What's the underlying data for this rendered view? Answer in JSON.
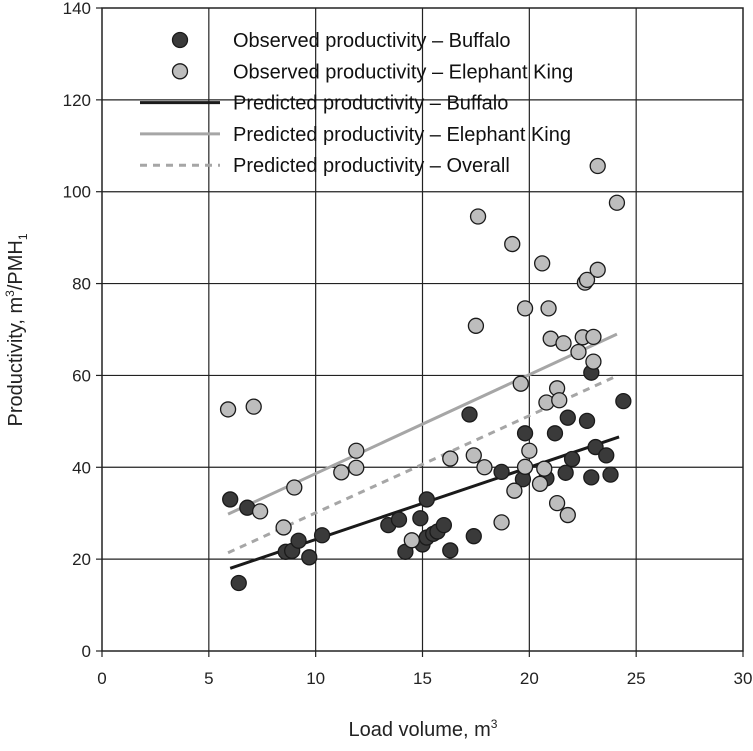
{
  "chart_data": {
    "type": "scatter",
    "title": "",
    "xlabel": "Load volume, m",
    "xlabel_sup": "3",
    "ylabel": "Productivity, m",
    "ylabel_sup": "3",
    "ylabel_tail": "/PMH",
    "ylabel_sub": "1",
    "xlim": [
      0,
      30
    ],
    "ylim": [
      0,
      140
    ],
    "x_ticks": [
      0,
      5,
      10,
      15,
      20,
      25,
      30
    ],
    "y_ticks": [
      0,
      20,
      40,
      60,
      80,
      100,
      120,
      140
    ],
    "x_tick_labels": [
      "0",
      "5",
      "10",
      "15",
      "20",
      "25",
      "30"
    ],
    "y_tick_labels": [
      "0",
      "20",
      "40",
      "60",
      "80",
      "100",
      "120",
      "140"
    ],
    "grid": true,
    "legend_position": "top-left",
    "legend": [
      "Observed productivity – Buffalo",
      "Observed productivity – Elephant King",
      "Predicted productivity – Buffalo",
      "Predicted productivity – Elephant King",
      "Predicted productivity – Overall"
    ],
    "colors": {
      "buffalo_fill": "#3a3a3a",
      "elephant_fill": "#bdbdbd",
      "buffalo_line": "#1a1a1a",
      "elephant_line": "#a6a6a6",
      "overall_line": "#a6a6a6",
      "grid": "#222222"
    },
    "series": [
      {
        "name": "Observed productivity – Buffalo",
        "kind": "scatter",
        "points": [
          [
            6.0,
            33.0
          ],
          [
            6.4,
            14.8
          ],
          [
            6.8,
            31.2
          ],
          [
            8.6,
            21.6
          ],
          [
            8.9,
            21.8
          ],
          [
            9.2,
            24.0
          ],
          [
            9.7,
            20.4
          ],
          [
            10.3,
            25.2
          ],
          [
            13.4,
            27.4
          ],
          [
            13.9,
            28.6
          ],
          [
            14.2,
            21.6
          ],
          [
            14.9,
            28.9
          ],
          [
            15.0,
            23.2
          ],
          [
            15.2,
            24.7
          ],
          [
            15.2,
            33.0
          ],
          [
            15.5,
            25.5
          ],
          [
            15.7,
            26.0
          ],
          [
            16.0,
            27.4
          ],
          [
            16.3,
            21.9
          ],
          [
            17.2,
            51.5
          ],
          [
            17.4,
            25.0
          ],
          [
            18.7,
            39.0
          ],
          [
            19.7,
            37.4
          ],
          [
            19.8,
            47.4
          ],
          [
            20.8,
            37.6
          ],
          [
            21.2,
            47.4
          ],
          [
            21.7,
            38.8
          ],
          [
            21.8,
            50.8
          ],
          [
            22.0,
            41.8
          ],
          [
            22.7,
            50.1
          ],
          [
            22.9,
            37.8
          ],
          [
            22.9,
            60.6
          ],
          [
            23.1,
            44.4
          ],
          [
            23.6,
            42.6
          ],
          [
            23.8,
            38.4
          ],
          [
            24.4,
            54.4
          ]
        ]
      },
      {
        "name": "Observed productivity – Elephant King",
        "kind": "scatter",
        "points": [
          [
            5.9,
            52.6
          ],
          [
            7.1,
            53.2
          ],
          [
            7.4,
            30.4
          ],
          [
            8.5,
            26.9
          ],
          [
            9.0,
            35.6
          ],
          [
            11.2,
            38.9
          ],
          [
            11.9,
            39.9
          ],
          [
            11.9,
            43.6
          ],
          [
            14.5,
            24.1
          ],
          [
            16.3,
            41.9
          ],
          [
            17.4,
            42.6
          ],
          [
            17.5,
            70.8
          ],
          [
            17.6,
            94.6
          ],
          [
            17.9,
            40.0
          ],
          [
            18.7,
            28.0
          ],
          [
            19.2,
            88.6
          ],
          [
            19.3,
            34.9
          ],
          [
            19.6,
            58.2
          ],
          [
            19.8,
            40.1
          ],
          [
            19.8,
            74.6
          ],
          [
            20.0,
            43.6
          ],
          [
            20.5,
            36.4
          ],
          [
            20.6,
            84.4
          ],
          [
            20.7,
            39.7
          ],
          [
            20.8,
            54.1
          ],
          [
            20.9,
            74.6
          ],
          [
            21.0,
            68.0
          ],
          [
            21.3,
            32.2
          ],
          [
            21.3,
            57.2
          ],
          [
            21.4,
            54.6
          ],
          [
            21.6,
            67.0
          ],
          [
            21.8,
            29.6
          ],
          [
            22.3,
            65.1
          ],
          [
            22.5,
            68.3
          ],
          [
            22.6,
            80.2
          ],
          [
            22.7,
            80.8
          ],
          [
            23.0,
            68.4
          ],
          [
            23.0,
            63.0
          ],
          [
            23.2,
            105.6
          ],
          [
            23.2,
            83.0
          ],
          [
            24.1,
            97.6
          ]
        ]
      },
      {
        "name": "Predicted productivity – Buffalo",
        "kind": "line",
        "points": [
          [
            6.0,
            18.0
          ],
          [
            24.2,
            46.6
          ]
        ]
      },
      {
        "name": "Predicted productivity – Elephant King",
        "kind": "line",
        "points": [
          [
            5.9,
            29.8
          ],
          [
            24.1,
            69.0
          ]
        ]
      },
      {
        "name": "Predicted productivity – Overall",
        "kind": "line",
        "dashed": true,
        "points": [
          [
            5.9,
            21.4
          ],
          [
            24.1,
            59.9
          ]
        ]
      }
    ]
  }
}
